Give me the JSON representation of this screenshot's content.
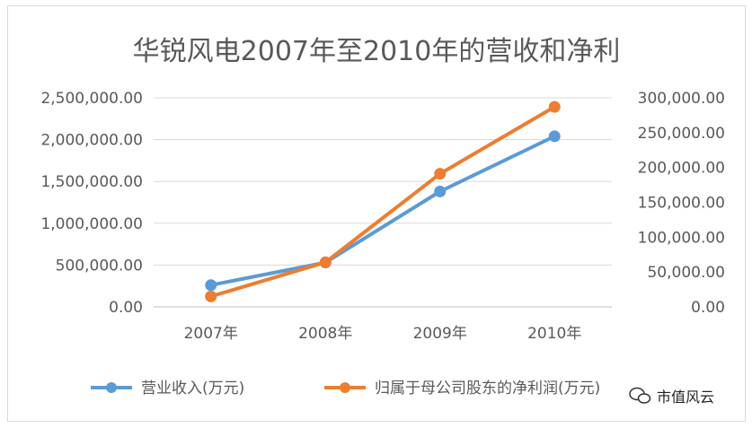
{
  "chart_data": {
    "type": "line",
    "title": "华锐风电2007年至2010年的营收和净利",
    "categories": [
      "2007年",
      "2008年",
      "2009年",
      "2010年"
    ],
    "y_left": {
      "ticks": [
        "2,500,000.00",
        "2,000,000.00",
        "1,500,000.00",
        "1,000,000.00",
        "500,000.00",
        "0.00"
      ],
      "range": [
        0,
        2500000
      ]
    },
    "y_right": {
      "ticks": [
        "300,000.00",
        "250,000.00",
        "200,000.00",
        "150,000.00",
        "100,000.00",
        "50,000.00",
        "0.00"
      ],
      "range": [
        0,
        300000
      ]
    },
    "series": [
      {
        "name": "营业收入(万元)",
        "axis": "left",
        "color": "#5b9bd5",
        "values": [
          260000,
          530000,
          1380000,
          2040000
        ]
      },
      {
        "name": "归属于母公司股东的净利润(万元)",
        "axis": "right",
        "color": "#ed7d31",
        "values": [
          15000,
          64000,
          191000,
          287000
        ]
      }
    ],
    "grid": true,
    "legend": "bottom"
  },
  "watermark": {
    "text": "市值风云",
    "icon": "wechat-icon"
  }
}
